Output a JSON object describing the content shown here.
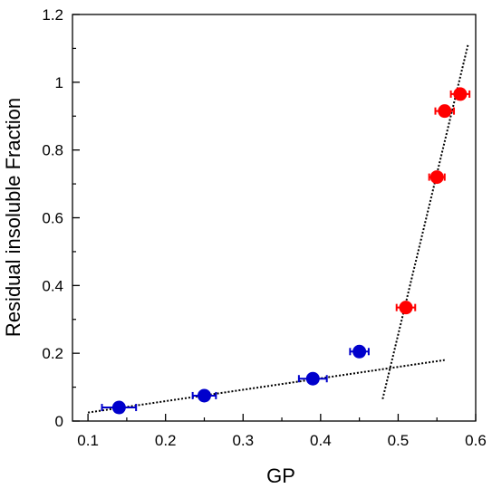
{
  "chart_data": {
    "type": "scatter",
    "title": "",
    "xlabel": "GP",
    "ylabel": "Residual insoluble Fraction",
    "xlim": [
      0.08,
      0.6
    ],
    "ylim": [
      0,
      1.2
    ],
    "x_ticks": [
      "0.1",
      "0.2",
      "0.3",
      "0.4",
      "0.5",
      "0.6"
    ],
    "y_ticks": [
      "0",
      "0.2",
      "0.4",
      "0.6",
      "0.8",
      "1",
      "1.2"
    ],
    "grid": false,
    "legend": "none",
    "series": [
      {
        "color": "#0000cc",
        "points": [
          {
            "x": 0.14,
            "y": 0.04,
            "xerr": 0.022
          },
          {
            "x": 0.25,
            "y": 0.075,
            "xerr": 0.015
          },
          {
            "x": 0.39,
            "y": 0.125,
            "xerr": 0.018
          },
          {
            "x": 0.45,
            "y": 0.205,
            "xerr": 0.012
          }
        ]
      },
      {
        "color": "#ff0000",
        "points": [
          {
            "x": 0.51,
            "y": 0.335,
            "xerr": 0.012
          },
          {
            "x": 0.55,
            "y": 0.72,
            "xerr": 0.01
          },
          {
            "x": 0.56,
            "y": 0.915,
            "xerr": 0.012
          },
          {
            "x": 0.58,
            "y": 0.965,
            "xerr": 0.012
          }
        ]
      }
    ],
    "fit_lines": [
      {
        "x1": 0.1,
        "y1": 0.025,
        "x2": 0.56,
        "y2": 0.18
      },
      {
        "x1": 0.48,
        "y1": 0.065,
        "x2": 0.59,
        "y2": 1.11
      }
    ]
  }
}
